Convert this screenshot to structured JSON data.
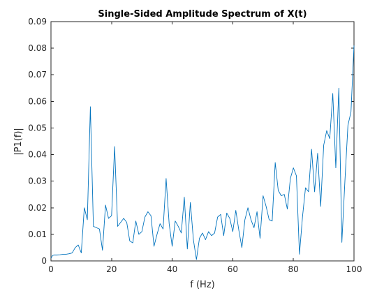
{
  "chart_data": {
    "type": "line",
    "title": "Single-Sided Amplitude Spectrum of X(t)",
    "xlabel": "f (Hz)",
    "ylabel": "|P1(f)|",
    "xlim": [
      0,
      100
    ],
    "ylim": [
      0,
      0.09
    ],
    "xticks": [
      0,
      20,
      40,
      60,
      80,
      100
    ],
    "xtick_labels": [
      "0",
      "20",
      "40",
      "60",
      "80",
      "100"
    ],
    "yticks": [
      0,
      0.01,
      0.02,
      0.03,
      0.04,
      0.05,
      0.06,
      0.07,
      0.08,
      0.09
    ],
    "ytick_labels": [
      "0",
      "0.01",
      "0.02",
      "0.03",
      "0.04",
      "0.05",
      "0.06",
      "0.07",
      "0.08",
      "0.09"
    ],
    "grid": false,
    "line_color": "#0072BD",
    "series": [
      {
        "x": [
          0,
          0.5,
          1,
          2,
          3,
          4,
          5,
          6,
          7,
          8,
          9,
          10,
          11,
          12,
          13,
          14,
          15,
          16,
          17,
          18,
          19,
          20,
          21,
          22,
          23,
          24,
          25,
          26,
          27,
          28,
          29,
          30,
          31,
          32,
          33,
          34,
          35,
          36,
          37,
          38,
          39,
          40,
          41,
          42,
          43,
          44,
          45,
          46,
          47,
          48,
          49,
          50,
          51,
          52,
          53,
          54,
          55,
          56,
          57,
          58,
          59,
          60,
          61,
          62,
          63,
          64,
          65,
          66,
          67,
          68,
          69,
          70,
          71,
          72,
          73,
          74,
          75,
          76,
          77,
          78,
          79,
          80,
          81,
          82,
          83,
          84,
          85,
          86,
          87,
          88,
          89,
          90,
          91,
          92,
          93,
          94,
          95,
          96,
          97,
          98,
          99,
          100
        ],
        "y": [
          0.001,
          0.002,
          0.0022,
          0.0022,
          0.0023,
          0.0025,
          0.0025,
          0.0027,
          0.003,
          0.005,
          0.006,
          0.003,
          0.02,
          0.0155,
          0.058,
          0.013,
          0.0125,
          0.012,
          0.004,
          0.021,
          0.016,
          0.017,
          0.043,
          0.013,
          0.0145,
          0.016,
          0.0145,
          0.0075,
          0.0068,
          0.015,
          0.01,
          0.011,
          0.0165,
          0.0185,
          0.017,
          0.0055,
          0.01,
          0.014,
          0.012,
          0.031,
          0.014,
          0.0055,
          0.015,
          0.013,
          0.0105,
          0.024,
          0.0045,
          0.022,
          0.008,
          0.0005,
          0.0085,
          0.0105,
          0.008,
          0.011,
          0.0095,
          0.0105,
          0.0165,
          0.0175,
          0.0095,
          0.018,
          0.016,
          0.011,
          0.019,
          0.0115,
          0.005,
          0.0155,
          0.02,
          0.0155,
          0.0125,
          0.0185,
          0.0085,
          0.0245,
          0.0205,
          0.0155,
          0.015,
          0.037,
          0.0265,
          0.0245,
          0.025,
          0.0195,
          0.031,
          0.035,
          0.032,
          0.0025,
          0.0165,
          0.0275,
          0.026,
          0.042,
          0.026,
          0.0405,
          0.0205,
          0.0435,
          0.049,
          0.046,
          0.063,
          0.035,
          0.065,
          0.007,
          0.03,
          0.051,
          0.056,
          0.081
        ]
      }
    ]
  }
}
